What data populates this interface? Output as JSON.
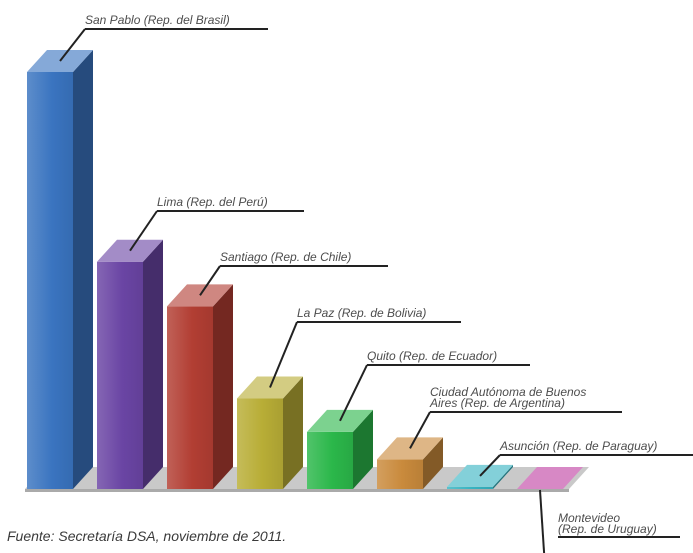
{
  "chart_data": {
    "type": "bar",
    "style": "3d",
    "title": "",
    "xlabel": "",
    "ylabel": "",
    "legend": "none",
    "grid": false,
    "categories": [
      "San Pablo (Rep. del Brasil)",
      "Lima (Rep. del Perú)",
      "Santiago (Rep. de Chile)",
      "La Paz (Rep. de Bolivia)",
      "Quito (Rep. de Ecuador)",
      "Ciudad Autónoma de Buenos Aires (Rep. de Argentina)",
      "Asunción (Rep. de Paraguay)",
      "Montevideo (Rep. de Uruguay)"
    ],
    "values": [
      100,
      54.5,
      43.8,
      21.7,
      13.7,
      7.1,
      0.5,
      -2.7
    ],
    "colors": [
      "#3a74c0",
      "#6a45a4",
      "#b23e33",
      "#b8ad36",
      "#2bb74a",
      "#c98a3c",
      "#37b3c1",
      "#bf3fa2"
    ],
    "labels": [
      [
        "San Pablo (Rep. del Brasil)"
      ],
      [
        "Lima (Rep. del Perú)"
      ],
      [
        "Santiago (Rep. de Chile)"
      ],
      [
        "La Paz (Rep. de Bolivia)"
      ],
      [
        "Quito (Rep. de Ecuador)"
      ],
      [
        "Ciudad Autónoma de Buenos",
        "Aires (Rep. de Argentina)"
      ],
      [
        "Asunción (Rep. de Paraguay)"
      ],
      [
        "Montevideo",
        "(Rep. de Uruguay)"
      ]
    ]
  },
  "source_note": "Fuente: Secretaría DSA, noviembre de 2011."
}
